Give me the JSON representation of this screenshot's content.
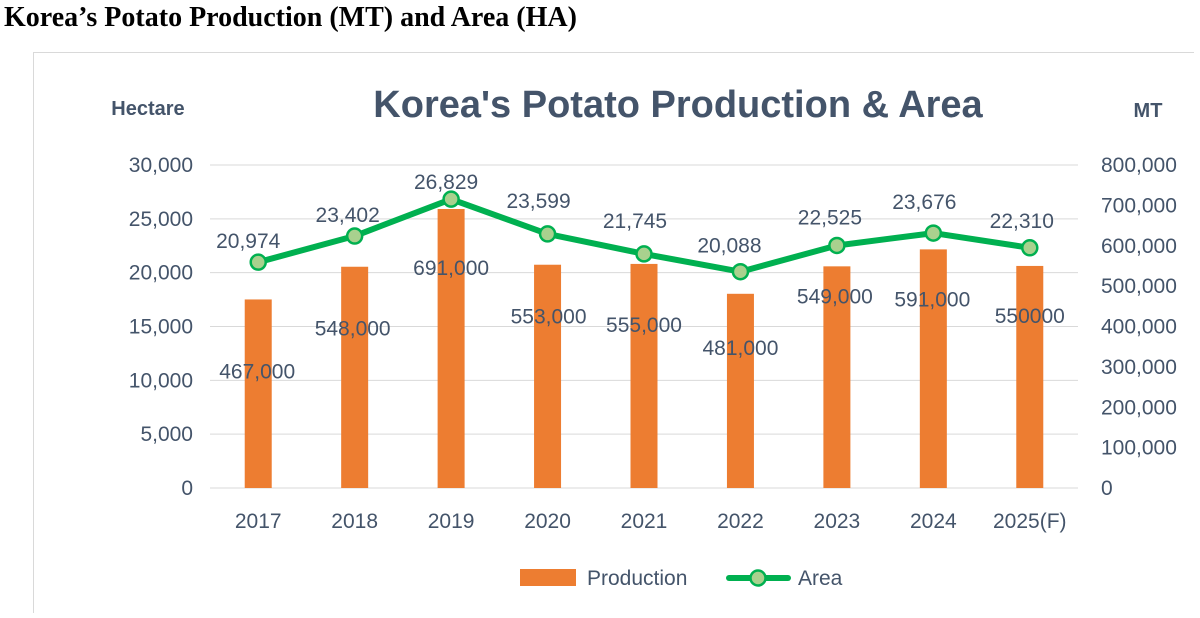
{
  "page": {
    "heading": "Korea’s Potato Production (MT) and Area (HA)"
  },
  "chart_data": {
    "type": "bar",
    "title": "Korea's Potato Production & Area",
    "categories": [
      "2017",
      "2018",
      "2019",
      "2020",
      "2021",
      "2022",
      "2023",
      "2024",
      "2025(F)"
    ],
    "series": [
      {
        "name": "Production",
        "type": "bar",
        "axis": "right",
        "color": "#ed7d31",
        "values": [
          467000,
          548000,
          691000,
          553000,
          555000,
          481000,
          549000,
          591000,
          550000
        ],
        "labels": [
          "467,000",
          "548,000",
          "691,000",
          "553,000",
          "555,000",
          "481,000",
          "549,000",
          "591,000",
          "550000"
        ]
      },
      {
        "name": "Area",
        "type": "line",
        "axis": "left",
        "color": "#00b050",
        "marker_fill": "#a9d18e",
        "values": [
          20974,
          23402,
          26829,
          23599,
          21745,
          20088,
          22525,
          23676,
          22310
        ],
        "labels": [
          "20,974",
          "23,402",
          "26,829",
          "23,599",
          "21,745",
          "20,088",
          "22,525",
          "23,676",
          "22,310"
        ]
      }
    ],
    "y_left": {
      "label": "Hectare",
      "range": [
        0,
        30000
      ],
      "ticks": [
        "0",
        "5,000",
        "10,000",
        "15,000",
        "20,000",
        "25,000",
        "30,000"
      ]
    },
    "y_right": {
      "label": "MT",
      "range": [
        0,
        800000
      ],
      "ticks": [
        "0",
        "100,000",
        "200,000",
        "300,000",
        "400,000",
        "500,000",
        "600,000",
        "700,000",
        "800,000"
      ]
    },
    "grid": true,
    "legend": "bottom"
  }
}
